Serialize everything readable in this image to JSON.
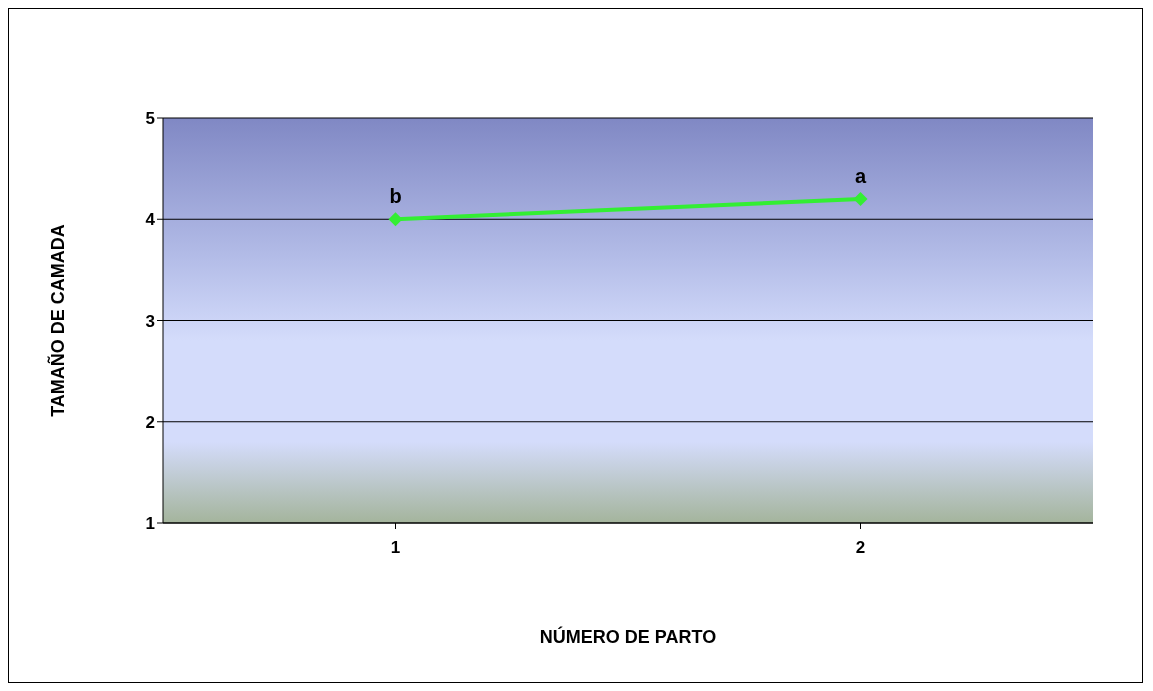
{
  "chart_data": {
    "type": "line",
    "xlabel": "NÚMERO DE PARTO",
    "ylabel": "TAMAÑO DE CAMADA",
    "categories": [
      "1",
      "2"
    ],
    "series": [
      {
        "color": "#33ee33",
        "values": [
          4.0,
          4.2
        ]
      }
    ],
    "ylim": [
      1,
      5
    ],
    "yticks": [
      1,
      2,
      3,
      4,
      5
    ],
    "grid": "y",
    "marker": "diamond",
    "line_style": "solid",
    "legend": false,
    "annotations": [
      {
        "text": "b",
        "x": "1",
        "y": 4.0
      },
      {
        "text": "a",
        "x": "2",
        "y": 4.2
      }
    ]
  }
}
